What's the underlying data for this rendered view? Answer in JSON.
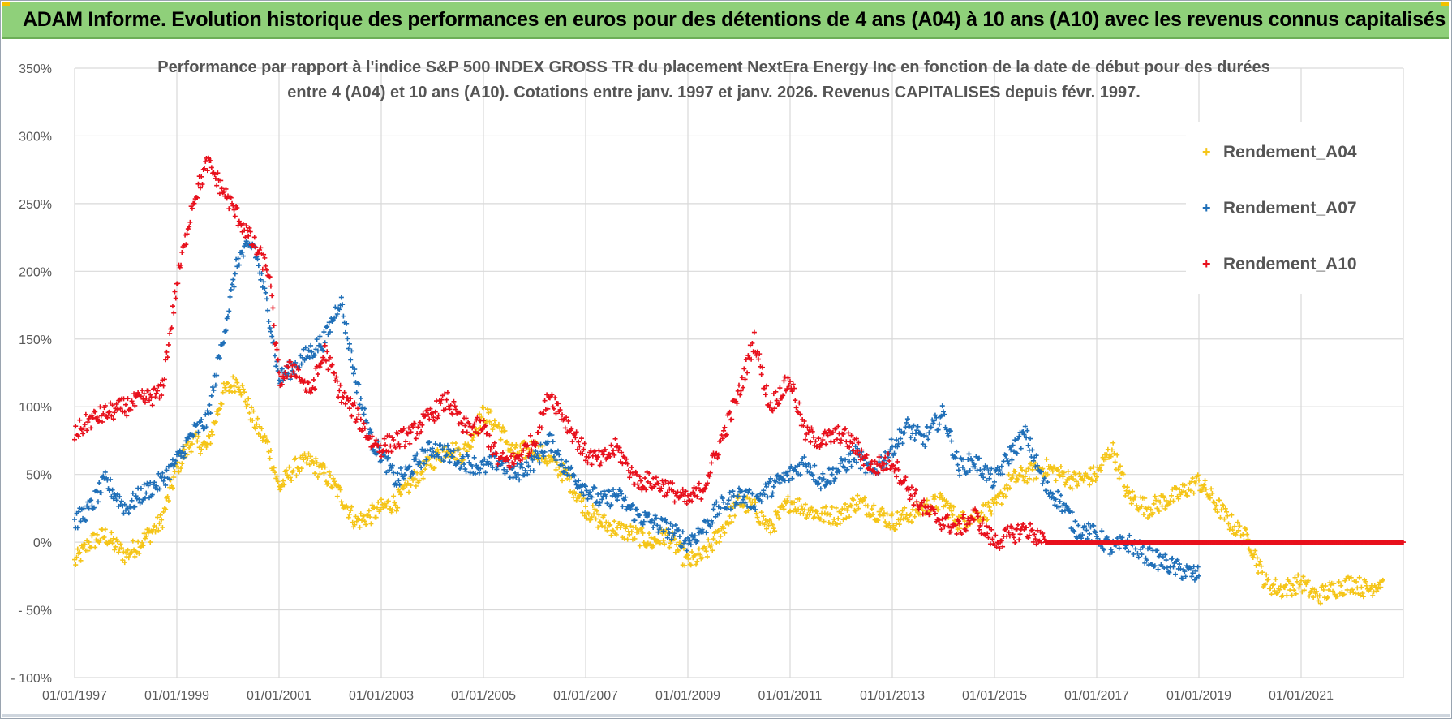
{
  "header": {
    "title": "ADAM Informe. Evolution historique des performances en euros pour des détentions de 4 ans (A04) à 10 ans (A10) avec les revenus connus capitalisés"
  },
  "colors": {
    "banner": "#8fd07a",
    "grid": "#d9d9d9",
    "axis_text": "#595959"
  },
  "chart_data": {
    "type": "scatter",
    "title_line1": "Performance par rapport à l'indice S&P 500 INDEX GROSS TR  du placement NextEra Energy Inc en fonction de la date de début pour des durées",
    "title_line2": "entre 4 (A04) et 10 ans (A10).  Cotations entre janv. 1997 et janv. 2026. Revenus CAPITALISES depuis févr. 1997.",
    "x_range": [
      1997.0,
      2023.0
    ],
    "ylim": [
      -100,
      350
    ],
    "y_ticks": [
      -100,
      -50,
      0,
      50,
      100,
      150,
      200,
      250,
      300,
      350
    ],
    "y_tick_labels": [
      "- 100%",
      "- 50%",
      "0%",
      "50%",
      "100%",
      "150%",
      "200%",
      "250%",
      "300%",
      "350%"
    ],
    "x_ticks": [
      1997,
      1999,
      2001,
      2003,
      2005,
      2007,
      2009,
      2011,
      2013,
      2015,
      2017,
      2019,
      2021
    ],
    "x_tick_labels": [
      "01/01/1997",
      "01/01/1999",
      "01/01/2001",
      "01/01/2003",
      "01/01/2005",
      "01/01/2007",
      "01/01/2009",
      "01/01/2011",
      "01/01/2013",
      "01/01/2015",
      "01/01/2017",
      "01/01/2019",
      "01/01/2021"
    ],
    "legend_position": "right",
    "series": [
      {
        "name": "Rendement_A04",
        "color": "#f5c518",
        "x": [
          1997.0,
          1997.3,
          1997.6,
          1998.0,
          1998.3,
          1998.7,
          1999.0,
          1999.3,
          1999.6,
          1999.9,
          2000.2,
          2000.5,
          2000.8,
          2001.0,
          2001.3,
          2001.6,
          2001.9,
          2002.2,
          2002.5,
          2002.8,
          2003.0,
          2003.3,
          2003.6,
          2004.0,
          2004.3,
          2004.6,
          2005.0,
          2005.3,
          2005.6,
          2006.0,
          2006.3,
          2006.6,
          2007.0,
          2007.3,
          2007.6,
          2008.0,
          2008.3,
          2008.6,
          2009.0,
          2009.3,
          2009.6,
          2010.0,
          2010.3,
          2010.6,
          2011.0,
          2011.3,
          2011.6,
          2012.0,
          2012.3,
          2012.6,
          2013.0,
          2013.3,
          2013.6,
          2014.0,
          2014.3,
          2014.6,
          2015.0,
          2015.3,
          2015.6,
          2016.0,
          2016.3,
          2016.6,
          2017.0,
          2017.3,
          2017.6,
          2018.0,
          2018.3,
          2018.6,
          2019.0,
          2019.3,
          2019.6,
          2020.0,
          2020.3,
          2020.6,
          2021.0,
          2021.3,
          2021.6,
          2022.0,
          2022.3,
          2022.6
        ],
        "values": [
          -15,
          0,
          5,
          -10,
          0,
          15,
          55,
          75,
          70,
          110,
          120,
          90,
          70,
          40,
          55,
          60,
          50,
          35,
          15,
          20,
          25,
          30,
          45,
          60,
          70,
          65,
          95,
          85,
          65,
          70,
          60,
          50,
          25,
          15,
          10,
          5,
          0,
          5,
          -15,
          -10,
          5,
          30,
          25,
          10,
          30,
          25,
          20,
          20,
          30,
          25,
          15,
          20,
          25,
          30,
          15,
          20,
          25,
          45,
          50,
          55,
          50,
          45,
          50,
          70,
          35,
          25,
          30,
          35,
          45,
          30,
          15,
          0,
          -30,
          -35,
          -30,
          -40,
          -35,
          -30,
          -35,
          -28
        ]
      },
      {
        "name": "Rendement_A07",
        "color": "#1f6fb8",
        "x": [
          1997.0,
          1997.3,
          1997.6,
          1998.0,
          1998.3,
          1998.7,
          1999.0,
          1999.3,
          1999.6,
          1999.9,
          2000.2,
          2000.5,
          2000.8,
          2001.0,
          2001.3,
          2001.6,
          2001.9,
          2002.2,
          2002.5,
          2002.8,
          2003.0,
          2003.3,
          2003.6,
          2004.0,
          2004.3,
          2004.6,
          2005.0,
          2005.3,
          2005.6,
          2006.0,
          2006.3,
          2006.6,
          2007.0,
          2007.3,
          2007.6,
          2008.0,
          2008.3,
          2008.6,
          2009.0,
          2009.3,
          2009.6,
          2010.0,
          2010.3,
          2010.6,
          2011.0,
          2011.3,
          2011.6,
          2012.0,
          2012.3,
          2012.6,
          2013.0,
          2013.3,
          2013.6,
          2014.0,
          2014.3,
          2014.6,
          2015.0,
          2015.3,
          2015.6,
          2016.0,
          2016.3,
          2016.6,
          2017.0,
          2017.3,
          2017.6,
          2018.0,
          2018.3,
          2018.6,
          2019.0
        ],
        "values": [
          15,
          25,
          45,
          25,
          35,
          45,
          60,
          80,
          90,
          150,
          210,
          220,
          170,
          120,
          130,
          140,
          150,
          180,
          120,
          75,
          65,
          45,
          55,
          70,
          65,
          60,
          55,
          60,
          50,
          60,
          75,
          55,
          40,
          30,
          35,
          20,
          15,
          10,
          0,
          10,
          25,
          35,
          30,
          40,
          50,
          60,
          45,
          55,
          65,
          50,
          70,
          85,
          75,
          95,
          55,
          60,
          45,
          65,
          80,
          40,
          30,
          10,
          5,
          -5,
          0,
          -10,
          -15,
          -20,
          -25
        ]
      },
      {
        "name": "Rendement_A10",
        "color": "#e8101c",
        "x": [
          1997.0,
          1997.3,
          1997.6,
          1998.0,
          1998.3,
          1998.7,
          1999.0,
          1999.3,
          1999.6,
          1999.9,
          2000.2,
          2000.5,
          2000.8,
          2001.0,
          2001.3,
          2001.6,
          2001.9,
          2002.2,
          2002.5,
          2002.8,
          2003.0,
          2003.3,
          2003.6,
          2004.0,
          2004.3,
          2004.6,
          2005.0,
          2005.3,
          2005.6,
          2006.0,
          2006.3,
          2006.6,
          2007.0,
          2007.3,
          2007.6,
          2008.0,
          2008.3,
          2008.6,
          2009.0,
          2009.3,
          2009.6,
          2010.0,
          2010.3,
          2010.6,
          2011.0,
          2011.3,
          2011.6,
          2012.0,
          2012.3,
          2012.6,
          2013.0,
          2013.3,
          2013.6,
          2014.0,
          2014.3,
          2014.6,
          2015.0,
          2015.3,
          2015.6,
          2016.0
        ],
        "values": [
          80,
          90,
          95,
          100,
          105,
          110,
          190,
          250,
          280,
          260,
          240,
          220,
          200,
          120,
          130,
          110,
          140,
          110,
          95,
          75,
          70,
          75,
          80,
          95,
          105,
          85,
          85,
          60,
          60,
          75,
          110,
          90,
          65,
          60,
          70,
          45,
          45,
          40,
          30,
          40,
          70,
          110,
          150,
          100,
          120,
          80,
          75,
          80,
          70,
          55,
          60,
          40,
          25,
          15,
          10,
          20,
          0,
          5,
          10,
          0
        ]
      },
      {
        "name": "Rendement_A10 (0%)",
        "color": "#e8101c",
        "x_start": 2016.0,
        "x_end": 2023.0,
        "value": 0
      }
    ]
  },
  "legend": {
    "items": [
      {
        "label": "Rendement_A04",
        "color": "#f5c518"
      },
      {
        "label": "Rendement_A07",
        "color": "#1f6fb8"
      },
      {
        "label": "Rendement_A10",
        "color": "#e8101c"
      }
    ]
  }
}
